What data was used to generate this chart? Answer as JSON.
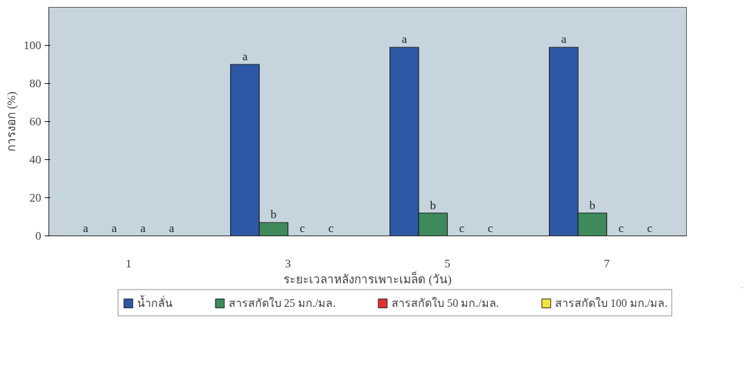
{
  "chart_data": {
    "type": "bar",
    "xlabel": "ระยะเวลาหลังการเพาะเมล็ด (วัน)",
    "ylabel": "การงอก (%)",
    "categories": [
      "1",
      "3",
      "5",
      "7"
    ],
    "series": [
      {
        "name": "น้ำกลั่น",
        "color": "#2e58a6",
        "values": [
          0,
          90,
          99,
          99
        ],
        "value_labels": [
          "a",
          "a",
          "a",
          "a"
        ]
      },
      {
        "name": "สารสกัดใบ 25 มก./มล.",
        "color": "#3f8a5c",
        "values": [
          0,
          7,
          12,
          12
        ],
        "value_labels": [
          "a",
          "b",
          "b",
          "b"
        ]
      },
      {
        "name": "สารสกัดใบ 50 มก./มล.",
        "color": "#e0312f",
        "values": [
          0,
          0,
          0,
          0
        ],
        "value_labels": [
          "a",
          "c",
          "c",
          "c"
        ]
      },
      {
        "name": "สารสกัดใบ 100 มก./มล.",
        "color": "#f2e33a",
        "values": [
          0,
          0,
          0,
          0
        ],
        "value_labels": [
          "a",
          "c",
          "c",
          "c"
        ]
      }
    ],
    "ylim": [
      0,
      120
    ],
    "yticks": [
      0,
      20,
      40,
      60,
      80,
      100
    ],
    "grid": false,
    "legend": "bottom"
  }
}
